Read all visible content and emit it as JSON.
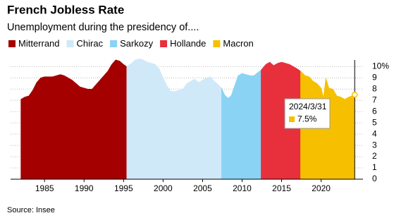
{
  "chart_data": {
    "type": "area",
    "title": "French Jobless Rate",
    "subtitle": "Unemployment during the presidency of....",
    "source": "Source: Insee",
    "xlim": [
      1980.7,
      2025.3
    ],
    "xticks": [
      1985,
      1990,
      1995,
      2000,
      2005,
      2010,
      2015,
      2020
    ],
    "ylim": [
      0,
      10.9
    ],
    "yticks": [
      0,
      1,
      2,
      3,
      4,
      5,
      6,
      7,
      8,
      9,
      {
        "value": 10,
        "label": "10%"
      }
    ],
    "grid": true,
    "legend": "top",
    "series": [
      {
        "name": "Mitterrand",
        "color": "#a50000",
        "x": [
          1982,
          1982.5,
          1983,
          1983.5,
          1984,
          1984.5,
          1985,
          1985.5,
          1986,
          1986.5,
          1987,
          1987.5,
          1988,
          1988.5,
          1989,
          1989.5,
          1990,
          1990.5,
          1991,
          1991.5,
          1992,
          1992.5,
          1993,
          1993.5,
          1994,
          1994.5,
          1995,
          1995.4
        ],
        "values": [
          7.1,
          7.3,
          7.4,
          7.9,
          8.6,
          9.0,
          9.1,
          9.1,
          9.1,
          9.2,
          9.3,
          9.2,
          9.0,
          8.8,
          8.5,
          8.2,
          8.1,
          8.0,
          8.0,
          8.4,
          8.8,
          9.2,
          9.6,
          10.2,
          10.6,
          10.5,
          10.2,
          10.0
        ]
      },
      {
        "name": "Chirac",
        "color": "#cfe9f9",
        "x": [
          1995.4,
          1996,
          1996.5,
          1997,
          1997.5,
          1998,
          1998.5,
          1999,
          1999.5,
          2000,
          2000.5,
          2001,
          2001.5,
          2002,
          2002.5,
          2003,
          2003.5,
          2004,
          2004.5,
          2005,
          2005.5,
          2006,
          2006.5,
          2007,
          2007.4
        ],
        "values": [
          10.0,
          10.3,
          10.6,
          10.7,
          10.6,
          10.4,
          10.3,
          10.2,
          9.8,
          9.0,
          8.3,
          7.8,
          7.8,
          7.9,
          8.0,
          8.5,
          8.7,
          8.9,
          8.6,
          8.8,
          9.0,
          9.1,
          8.7,
          8.4,
          8.1
        ]
      },
      {
        "name": "Sarkozy",
        "color": "#8ad3f5",
        "x": [
          2007.4,
          2007.8,
          2008.2,
          2008.6,
          2009,
          2009.5,
          2010,
          2010.5,
          2011,
          2011.5,
          2012,
          2012.4
        ],
        "values": [
          8.1,
          7.5,
          7.2,
          7.4,
          8.2,
          9.2,
          9.4,
          9.3,
          9.2,
          9.2,
          9.5,
          9.7
        ]
      },
      {
        "name": "Hollande",
        "color": "#e8303d",
        "x": [
          2012.4,
          2013,
          2013.5,
          2014,
          2014.5,
          2015,
          2015.5,
          2016,
          2016.5,
          2017,
          2017.4
        ],
        "values": [
          9.7,
          10.2,
          10.4,
          10.1,
          10.3,
          10.4,
          10.3,
          10.2,
          10.0,
          9.8,
          9.6
        ]
      },
      {
        "name": "Macron",
        "color": "#f6c000",
        "x": [
          2017.4,
          2018,
          2018.5,
          2019,
          2019.5,
          2020,
          2020.3,
          2020.6,
          2021,
          2021.5,
          2022,
          2022.5,
          2023,
          2023.5,
          2024.25
        ],
        "values": [
          9.6,
          9.2,
          9.1,
          8.7,
          8.5,
          8.1,
          7.3,
          9.0,
          8.1,
          8.0,
          7.4,
          7.3,
          7.1,
          7.3,
          7.5
        ]
      }
    ],
    "tooltip": {
      "date": "2024/3/31",
      "value_label": "7.5%"
    }
  }
}
